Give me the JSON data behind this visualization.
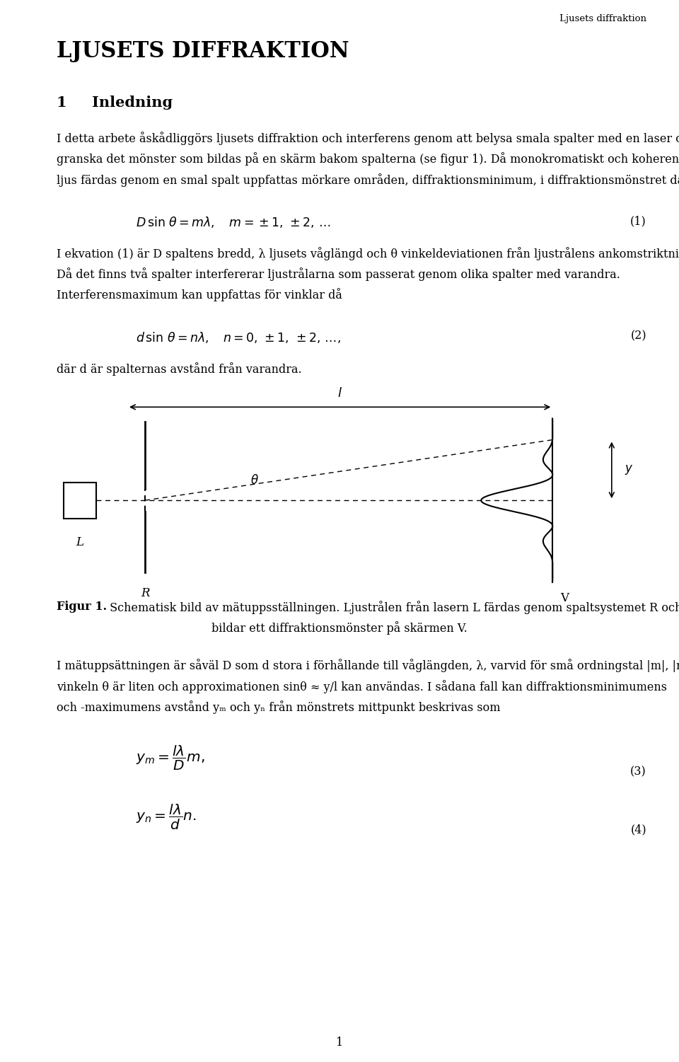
{
  "header_right": "Ljusets diffraktion",
  "title": "LJUSETS DIFFRAKTION",
  "section_num": "1",
  "section_title": "Inledning",
  "para1_lines": [
    "I detta arbete åskådliggörs ljusets diffraktion och interferens genom att belysa smala spalter med en laser och",
    "granska det mönster som bildas på en skärm bakom spalterna (se figur 1). Då monokromatiskt och koherent",
    "ljus färdas genom en smal spalt uppfattas mörkare områden, diffraktionsminimum, i diffraktionsmönstret då"
  ],
  "eq1_num": "(1)",
  "para2_lines": [
    "I ekvation (1) är D spaltens bredd, λ ljusets våglängd och θ vinkeldeviationen från ljustrålens ankomstriktning.",
    "Då det finns två spalter interfererar ljustrålarna som passerat genom olika spalter med varandra.",
    "Interferensmaximum kan uppfattas för vinklar då"
  ],
  "eq2_num": "(2)",
  "para3": "där d är spalternas avstånd från varandra.",
  "fig_caption_bold": "Figur 1.",
  "fig_caption_rest": " Schematisk bild av mätuppsställningen. Ljustrålen från lasern L färdas genom spaltsystemet R och",
  "fig_caption_line2": "bildar ett diffraktionsmönster på skärmen V.",
  "para4_lines": [
    "I mätuppsättningen är såväl D som d stora i förhållande till våglängden, λ, varvid för små ordningstal |m|, |n|",
    "vinkeln θ är liten och approximationen sinθ ≈ y/l kan användas. I sådana fall kan diffraktionsminimumens",
    "och -maximumens avstånd yₘ och yₙ från mönstrets mittpunkt beskrivas som"
  ],
  "eq3_num": "(3)",
  "eq4_num": "(4)",
  "page_num": "1",
  "bg_color": "#ffffff",
  "text_color": "#000000",
  "ml": 0.083,
  "mr": 0.952,
  "fs_body": 11.5,
  "fs_title": 22,
  "fs_section": 15,
  "lh": 0.0195
}
